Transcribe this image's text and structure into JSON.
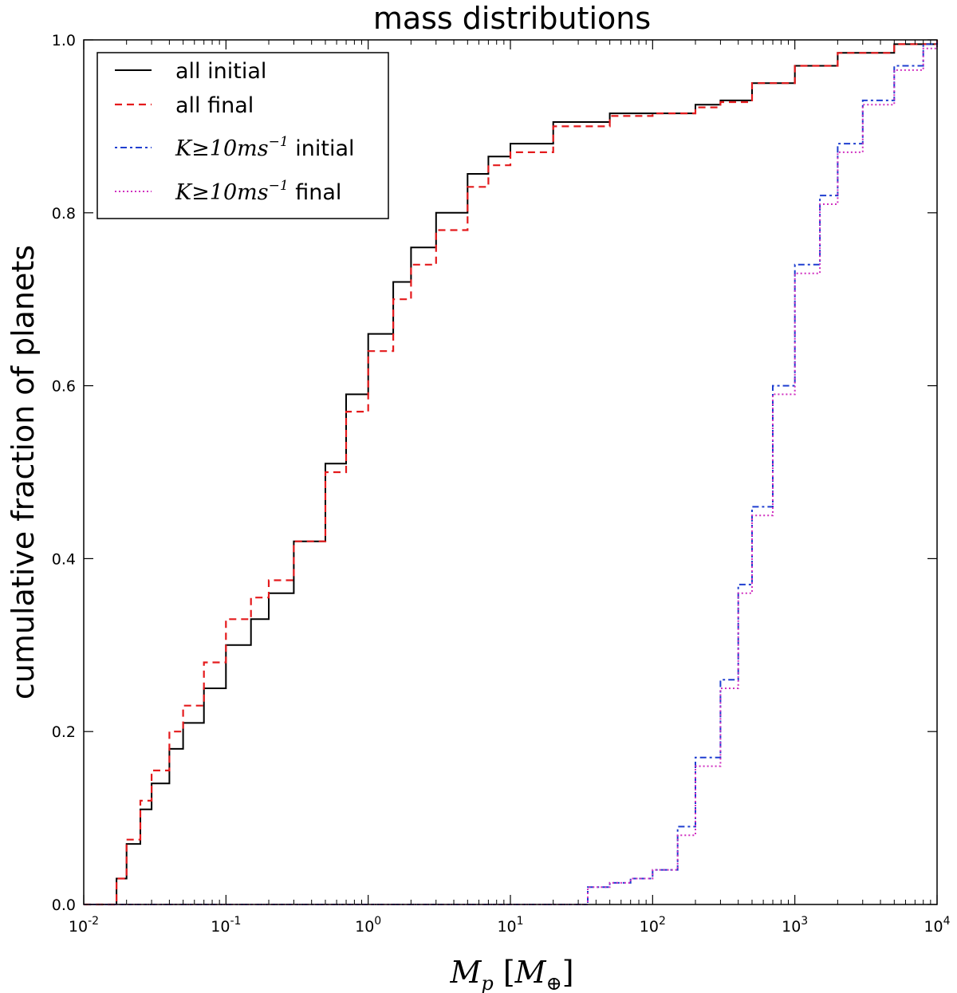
{
  "chart_data": {
    "type": "line",
    "title": "mass distributions",
    "xlabel": "M_p [M_⊕]",
    "ylabel": "cumulative fraction of planets",
    "xscale": "log",
    "xlim": [
      0.01,
      10000
    ],
    "ylim": [
      0.0,
      1.0
    ],
    "x_ticks": [
      {
        "value": 0.01,
        "base": "10",
        "exp": "-2"
      },
      {
        "value": 0.1,
        "base": "10",
        "exp": "-1"
      },
      {
        "value": 1,
        "base": "10",
        "exp": "0"
      },
      {
        "value": 10,
        "base": "10",
        "exp": "1"
      },
      {
        "value": 100,
        "base": "10",
        "exp": "2"
      },
      {
        "value": 1000,
        "base": "10",
        "exp": "3"
      },
      {
        "value": 10000,
        "base": "10",
        "exp": "4"
      }
    ],
    "y_ticks": [
      {
        "value": 0.0,
        "label": "0.0"
      },
      {
        "value": 0.2,
        "label": "0.2"
      },
      {
        "value": 0.4,
        "label": "0.4"
      },
      {
        "value": 0.6,
        "label": "0.6"
      },
      {
        "value": 0.8,
        "label": "0.8"
      },
      {
        "value": 1.0,
        "label": "1.0"
      }
    ],
    "grid": false,
    "legend_position": "top-left",
    "series": [
      {
        "name": "all initial",
        "math": "",
        "suffix": "all initial",
        "color": "#000000",
        "style": "solid",
        "x": [
          0.01,
          0.015,
          0.017,
          0.02,
          0.025,
          0.03,
          0.04,
          0.05,
          0.07,
          0.1,
          0.15,
          0.2,
          0.3,
          0.5,
          0.7,
          1,
          1.5,
          2,
          3,
          5,
          7,
          10,
          20,
          50,
          100,
          200,
          300,
          500,
          1000,
          2000,
          5000,
          10000
        ],
        "y": [
          0,
          0,
          0.03,
          0.07,
          0.11,
          0.14,
          0.18,
          0.21,
          0.25,
          0.3,
          0.33,
          0.36,
          0.42,
          0.51,
          0.59,
          0.66,
          0.72,
          0.76,
          0.8,
          0.845,
          0.865,
          0.88,
          0.905,
          0.915,
          0.915,
          0.925,
          0.93,
          0.95,
          0.97,
          0.985,
          0.995,
          1.0
        ]
      },
      {
        "name": "all final",
        "math": "",
        "suffix": "all final",
        "color": "#e41a1c",
        "style": "dashed",
        "x": [
          0.01,
          0.015,
          0.017,
          0.02,
          0.025,
          0.03,
          0.04,
          0.05,
          0.07,
          0.1,
          0.15,
          0.2,
          0.3,
          0.5,
          0.7,
          1,
          1.5,
          2,
          3,
          5,
          7,
          10,
          20,
          50,
          100,
          200,
          300,
          500,
          1000,
          2000,
          5000,
          10000
        ],
        "y": [
          0,
          0,
          0.03,
          0.075,
          0.12,
          0.155,
          0.2,
          0.23,
          0.28,
          0.33,
          0.355,
          0.375,
          0.42,
          0.5,
          0.57,
          0.64,
          0.7,
          0.74,
          0.78,
          0.83,
          0.855,
          0.87,
          0.9,
          0.912,
          0.915,
          0.922,
          0.928,
          0.95,
          0.97,
          0.985,
          0.995,
          1.0
        ]
      },
      {
        "name": "K≥10ms⁻¹ initial",
        "math": "K≥10ms",
        "suffix": "initial",
        "color": "#1f3fd0",
        "style": "dashdot",
        "x": [
          0.01,
          30,
          35,
          50,
          70,
          100,
          150,
          200,
          300,
          400,
          500,
          700,
          1000,
          1500,
          2000,
          3000,
          5000,
          8000,
          10000
        ],
        "y": [
          0,
          0,
          0.02,
          0.025,
          0.03,
          0.04,
          0.09,
          0.17,
          0.26,
          0.37,
          0.46,
          0.6,
          0.74,
          0.82,
          0.88,
          0.93,
          0.97,
          0.995,
          1.0
        ]
      },
      {
        "name": "K≥10ms⁻¹ final",
        "math": "K≥10ms",
        "suffix": "final",
        "color": "#d030c0",
        "style": "dotted",
        "x": [
          0.01,
          30,
          35,
          50,
          70,
          100,
          150,
          200,
          300,
          400,
          500,
          700,
          1000,
          1500,
          2000,
          3000,
          5000,
          8000,
          10000
        ],
        "y": [
          0,
          0,
          0.02,
          0.025,
          0.03,
          0.04,
          0.08,
          0.16,
          0.25,
          0.36,
          0.45,
          0.59,
          0.73,
          0.81,
          0.87,
          0.925,
          0.965,
          0.99,
          1.0
        ]
      }
    ]
  }
}
